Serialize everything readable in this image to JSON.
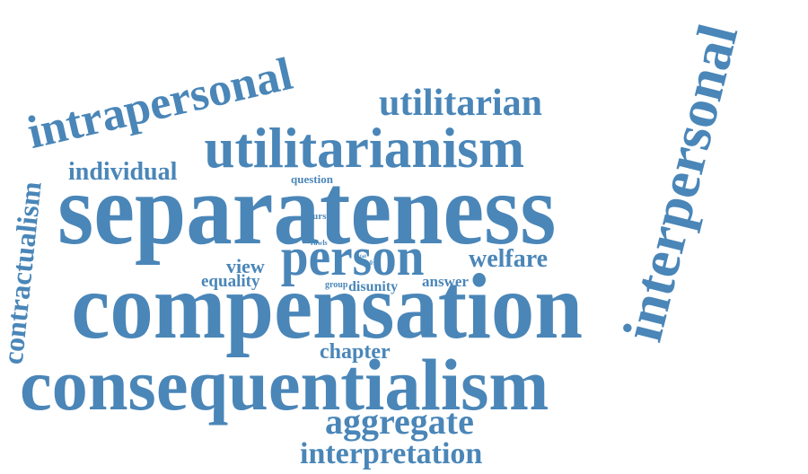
{
  "style": {
    "word_color": "#4a86b8",
    "background": "#ffffff"
  },
  "words": {
    "consequentialism": "consequentialism",
    "separateness": "separateness",
    "compensation": "compensation",
    "utilitarianism": "utilitarianism",
    "interpersonal": "interpersonal",
    "intrapersonal": "intrapersonal",
    "person": "person",
    "utilitarian": "utilitarian",
    "contractualism": "contractualism",
    "aggregate": "aggregate",
    "interpretation": "interpretation",
    "individual": "individual",
    "welfare": "welfare",
    "chapter": "chapter",
    "view": "view",
    "equality": "equality",
    "answer": "answer",
    "disunity": "disunity",
    "group": "group",
    "question": "question",
    "pursue": "pursue",
    "rawls": "rawls",
    "tiny_1": "fail",
    "tiny_2": "gp"
  }
}
